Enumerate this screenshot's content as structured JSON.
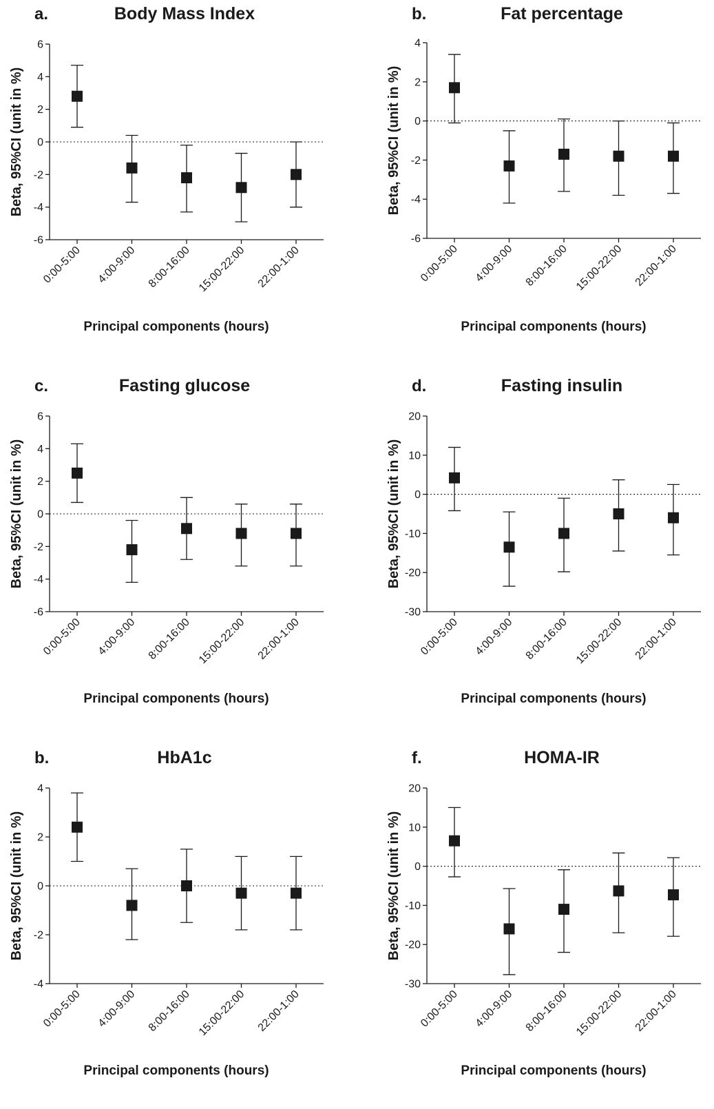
{
  "chart_data": [
    {
      "type": "scatter",
      "panel_label": "a.",
      "title": "Body Mass Index",
      "xlabel": "Principal components (hours)",
      "ylabel": "Beta, 95%CI (unit in %)",
      "ylim": [
        -6,
        6
      ],
      "yticks": [
        -6,
        -4,
        -2,
        0,
        2,
        4,
        6
      ],
      "reference_line": 0,
      "categories": [
        "0:00-5:00",
        "4:00-9:00",
        "8:00-16:00",
        "15:00-22:00",
        "22:00-1:00"
      ],
      "values": [
        2.8,
        -1.6,
        -2.2,
        -2.8,
        -2.0
      ],
      "ci_low": [
        0.9,
        -3.7,
        -4.3,
        -4.9,
        -4.0
      ],
      "ci_high": [
        4.7,
        0.4,
        -0.2,
        -0.7,
        0.0
      ]
    },
    {
      "type": "scatter",
      "panel_label": "b.",
      "title": "Fat percentage",
      "xlabel": "Principal components (hours)",
      "ylabel": "Beta, 95%CI (unit in %)",
      "ylim": [
        -6,
        4
      ],
      "yticks": [
        -6,
        -4,
        -2,
        0,
        2,
        4
      ],
      "reference_line": 0,
      "categories": [
        "0:00-5:00",
        "4:00-9:00",
        "8:00-16:00",
        "15:00-22:00",
        "22:00-1:00"
      ],
      "values": [
        1.7,
        -2.3,
        -1.7,
        -1.8,
        -1.8
      ],
      "ci_low": [
        -0.1,
        -4.2,
        -3.6,
        -3.8,
        -3.7
      ],
      "ci_high": [
        3.4,
        -0.5,
        0.1,
        0.0,
        -0.1
      ]
    },
    {
      "type": "scatter",
      "panel_label": "c.",
      "title": "Fasting glucose",
      "xlabel": "Principal components (hours)",
      "ylabel": "Beta, 95%CI (unit in %)",
      "ylim": [
        -6,
        6
      ],
      "yticks": [
        -6,
        -4,
        -2,
        0,
        2,
        4,
        6
      ],
      "reference_line": 0,
      "categories": [
        "0:00-5:00",
        "4:00-9:00",
        "8:00-16:00",
        "15:00-22:00",
        "22:00-1:00"
      ],
      "values": [
        2.5,
        -2.2,
        -0.9,
        -1.2,
        -1.2
      ],
      "ci_low": [
        0.7,
        -4.2,
        -2.8,
        -3.2,
        -3.2
      ],
      "ci_high": [
        4.3,
        -0.4,
        1.0,
        0.6,
        0.6
      ]
    },
    {
      "type": "scatter",
      "panel_label": "d.",
      "title": "Fasting insulin",
      "xlabel": "Principal components (hours)",
      "ylabel": "Beta, 95%CI (unit in %)",
      "ylim": [
        -30,
        20
      ],
      "yticks": [
        -30,
        -20,
        -10,
        0,
        10,
        20
      ],
      "reference_line": 0,
      "categories": [
        "0:00-5:00",
        "4:00-9:00",
        "8:00-16:00",
        "15:00-22:00",
        "22:00-1:00"
      ],
      "values": [
        4.2,
        -13.5,
        -10.0,
        -5.0,
        -6.0
      ],
      "ci_low": [
        -4.2,
        -23.5,
        -19.8,
        -14.5,
        -15.5
      ],
      "ci_high": [
        12.0,
        -4.5,
        -1.0,
        3.7,
        2.5
      ]
    },
    {
      "type": "scatter",
      "panel_label": "b.",
      "title": "HbA1c",
      "xlabel": "Principal components (hours)",
      "ylabel": "Beta, 95%CI (unit in %)",
      "ylim": [
        -4,
        4
      ],
      "yticks": [
        -4,
        -2,
        0,
        2,
        4
      ],
      "reference_line": 0,
      "categories": [
        "0:00-5:00",
        "4:00-9:00",
        "8:00-16:00",
        "15:00-22:00",
        "22:00-1:00"
      ],
      "values": [
        2.4,
        -0.8,
        0.0,
        -0.3,
        -0.3
      ],
      "ci_low": [
        1.0,
        -2.2,
        -1.5,
        -1.8,
        -1.8
      ],
      "ci_high": [
        3.8,
        0.7,
        1.5,
        1.2,
        1.2
      ]
    },
    {
      "type": "scatter",
      "panel_label": "f.",
      "title": "HOMA-IR",
      "xlabel": "Principal components (hours)",
      "ylabel": "Beta, 95%CI (unit in %)",
      "ylim": [
        -30,
        20
      ],
      "yticks": [
        -30,
        -20,
        -10,
        0,
        10,
        20
      ],
      "reference_line": 0,
      "categories": [
        "0:00-5:00",
        "4:00-9:00",
        "8:00-16:00",
        "15:00-22:00",
        "22:00-1:00"
      ],
      "values": [
        6.5,
        -16.0,
        -11.0,
        -6.3,
        -7.3
      ],
      "ci_low": [
        -2.7,
        -27.7,
        -22.0,
        -17.0,
        -17.9
      ],
      "ci_high": [
        15.0,
        -5.7,
        -0.9,
        3.4,
        2.2
      ]
    }
  ]
}
